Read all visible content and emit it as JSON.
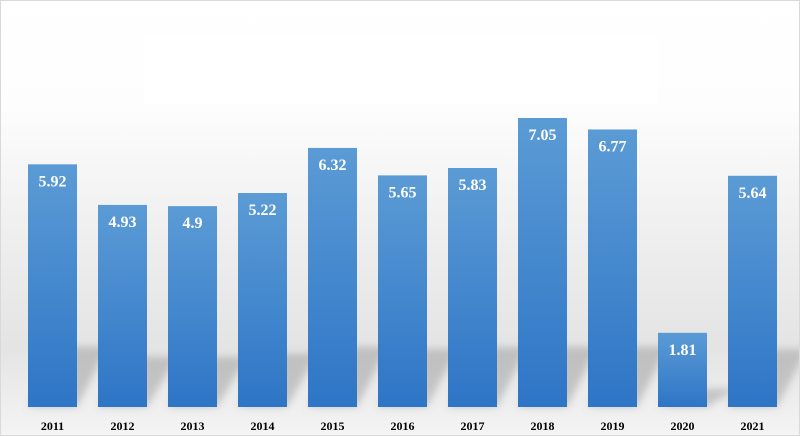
{
  "chart_data": {
    "type": "bar",
    "title": "",
    "xlabel": "",
    "ylabel": "",
    "categories": [
      "2011",
      "2012",
      "2013",
      "2014",
      "2015",
      "2016",
      "2017",
      "2018",
      "2019",
      "2020",
      "2021"
    ],
    "values": [
      5.92,
      4.93,
      4.9,
      5.22,
      6.32,
      5.65,
      5.83,
      7.05,
      6.77,
      1.81,
      5.64
    ],
    "value_labels": [
      "5.92",
      "4.93",
      "4.9",
      "5.22",
      "6.32",
      "5.65",
      "5.83",
      "7.05",
      "6.77",
      "1.81",
      "5.64"
    ],
    "ylim": [
      0,
      7.65
    ],
    "grid": false,
    "legend": "none",
    "colors": {
      "bar_top": "#5b9bd5",
      "bar_bottom": "#2e75c6",
      "value_label": "#ffffff",
      "category_label": "#000000"
    }
  }
}
